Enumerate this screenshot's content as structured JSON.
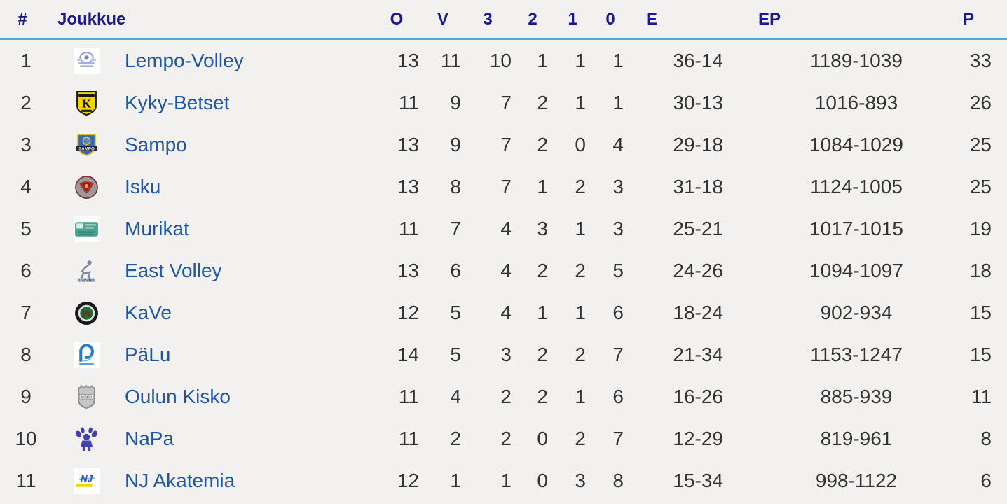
{
  "colors": {
    "background": "#f2f1ef",
    "header_text": "#1a1a8c",
    "header_rule": "#57a7d9",
    "team_link": "#1f57a8",
    "cell_text": "#333333"
  },
  "table": {
    "columns": {
      "rank": "#",
      "team": "Joukkue",
      "played": "O",
      "wins": "V",
      "set3": "3",
      "set2": "2",
      "set1": "1",
      "set0": "0",
      "sets": "E",
      "balls": "EP",
      "points": "P"
    },
    "rows": [
      {
        "rank": "1",
        "team": "Lempo-Volley",
        "logo": "lempo-volley-logo",
        "played": "13",
        "wins": "11",
        "set3": "10",
        "set2": "1",
        "set1": "1",
        "set0": "1",
        "sets": "36-14",
        "balls": "1189-1039",
        "points": "33"
      },
      {
        "rank": "2",
        "team": "Kyky-Betset",
        "logo": "kyky-betset-logo",
        "played": "11",
        "wins": "9",
        "set3": "7",
        "set2": "2",
        "set1": "1",
        "set0": "1",
        "sets": "30-13",
        "balls": "1016-893",
        "points": "26"
      },
      {
        "rank": "3",
        "team": "Sampo",
        "logo": "sampo-logo",
        "played": "13",
        "wins": "9",
        "set3": "7",
        "set2": "2",
        "set1": "0",
        "set0": "4",
        "sets": "29-18",
        "balls": "1084-1029",
        "points": "25"
      },
      {
        "rank": "4",
        "team": "Isku",
        "logo": "isku-logo",
        "played": "13",
        "wins": "8",
        "set3": "7",
        "set2": "1",
        "set1": "2",
        "set0": "3",
        "sets": "31-18",
        "balls": "1124-1005",
        "points": "25"
      },
      {
        "rank": "5",
        "team": "Murikat",
        "logo": "murikat-logo",
        "played": "11",
        "wins": "7",
        "set3": "4",
        "set2": "3",
        "set1": "1",
        "set0": "3",
        "sets": "25-21",
        "balls": "1017-1015",
        "points": "19"
      },
      {
        "rank": "6",
        "team": "East Volley",
        "logo": "east-volley-logo",
        "played": "13",
        "wins": "6",
        "set3": "4",
        "set2": "2",
        "set1": "2",
        "set0": "5",
        "sets": "24-26",
        "balls": "1094-1097",
        "points": "18"
      },
      {
        "rank": "7",
        "team": "KaVe",
        "logo": "kave-logo",
        "played": "12",
        "wins": "5",
        "set3": "4",
        "set2": "1",
        "set1": "1",
        "set0": "6",
        "sets": "18-24",
        "balls": "902-934",
        "points": "15"
      },
      {
        "rank": "8",
        "team": "PäLu",
        "logo": "palu-logo",
        "played": "14",
        "wins": "5",
        "set3": "3",
        "set2": "2",
        "set1": "2",
        "set0": "7",
        "sets": "21-34",
        "balls": "1153-1247",
        "points": "15"
      },
      {
        "rank": "9",
        "team": "Oulun Kisko",
        "logo": "oulun-kisko-logo",
        "played": "11",
        "wins": "4",
        "set3": "2",
        "set2": "2",
        "set1": "1",
        "set0": "6",
        "sets": "16-26",
        "balls": "885-939",
        "points": "11"
      },
      {
        "rank": "10",
        "team": "NaPa",
        "logo": "napa-logo",
        "played": "11",
        "wins": "2",
        "set3": "2",
        "set2": "0",
        "set1": "2",
        "set0": "7",
        "sets": "12-29",
        "balls": "819-961",
        "points": "8"
      },
      {
        "rank": "11",
        "team": "NJ Akatemia",
        "logo": "nj-akatemia-logo",
        "played": "12",
        "wins": "1",
        "set3": "1",
        "set2": "0",
        "set1": "3",
        "set0": "8",
        "sets": "15-34",
        "balls": "998-1122",
        "points": "6"
      }
    ]
  }
}
